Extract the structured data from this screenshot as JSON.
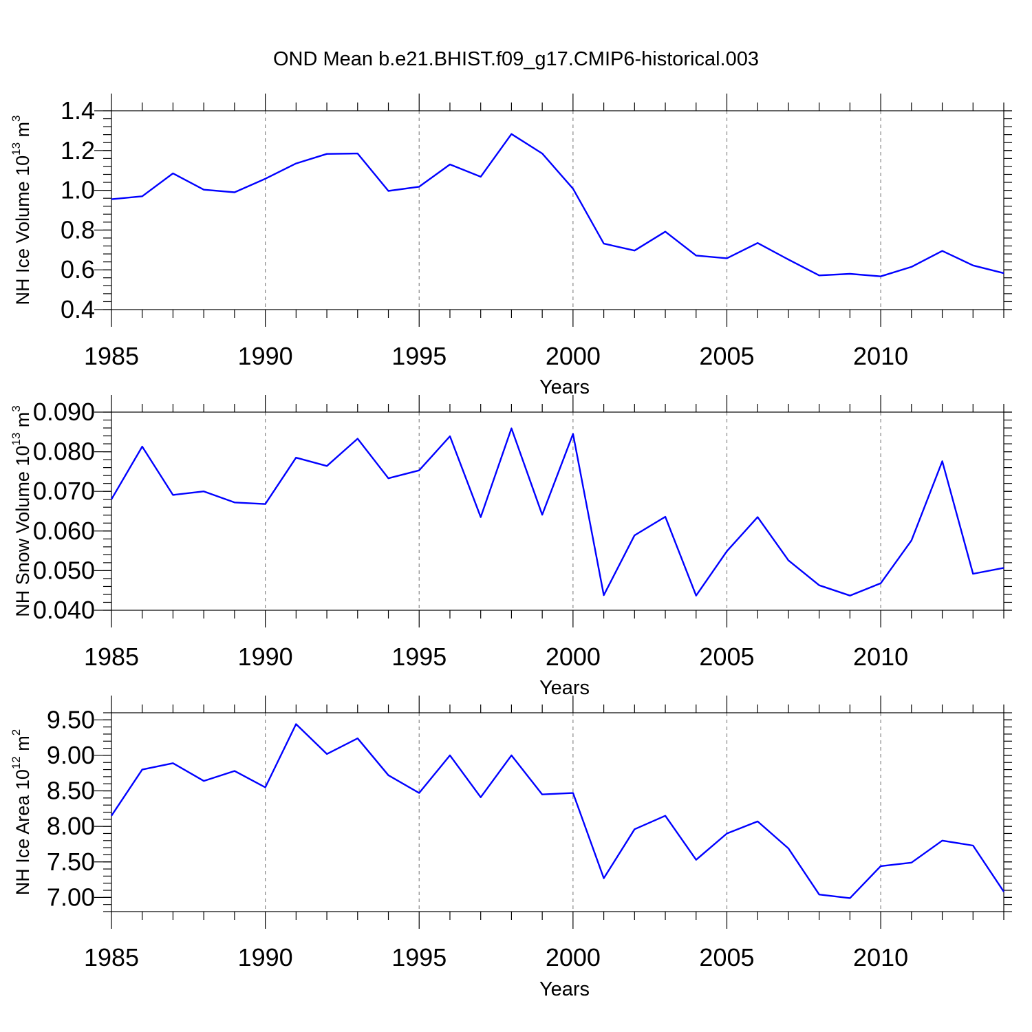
{
  "title": "OND Mean b.e21.BHIST.f09_g17.CMIP6-historical.003",
  "colors": {
    "line": "#0000ff",
    "frame": "#000000",
    "grid": "#888888"
  },
  "chart_data": [
    {
      "type": "line",
      "xlabel": "Years",
      "ylabel_main": "NH Ice Volume 10",
      "ylabel_exp": "13",
      "ylabel_unit": " m",
      "ylabel_unit_exp": "3",
      "xlim": [
        1985,
        2014
      ],
      "ylim": [
        0.4,
        1.4
      ],
      "yticks": [
        0.4,
        0.6,
        0.8,
        1.0,
        1.2,
        1.4
      ],
      "ytick_labels": [
        "0.4",
        "0.6",
        "0.8",
        "1.0",
        "1.2",
        "1.4"
      ],
      "xticks": [
        1985,
        1990,
        1995,
        2000,
        2005,
        2010
      ],
      "xtick_labels": [
        "1985",
        "1990",
        "1995",
        "2000",
        "2005",
        "2010"
      ],
      "grid": "vertical dashed at major x ticks",
      "x": [
        1985,
        1986,
        1987,
        1988,
        1989,
        1990,
        1991,
        1992,
        1993,
        1994,
        1995,
        1996,
        1997,
        1998,
        1999,
        2000,
        2001,
        2002,
        2003,
        2004,
        2005,
        2006,
        2007,
        2008,
        2009,
        2010,
        2011,
        2012,
        2013,
        2014
      ],
      "values": [
        0.955,
        0.97,
        1.085,
        1.003,
        0.99,
        1.058,
        1.135,
        1.183,
        1.185,
        0.997,
        1.018,
        1.13,
        1.068,
        1.283,
        1.185,
        1.008,
        0.732,
        0.697,
        0.792,
        0.672,
        0.658,
        0.735,
        0.652,
        0.572,
        0.58,
        0.567,
        0.615,
        0.695,
        0.622,
        0.583
      ]
    },
    {
      "type": "line",
      "xlabel": "Years",
      "ylabel_main": "NH Snow Volume 10",
      "ylabel_exp": "13",
      "ylabel_unit": " m",
      "ylabel_unit_exp": "3",
      "xlim": [
        1985,
        2014
      ],
      "ylim": [
        0.04,
        0.09
      ],
      "yticks": [
        0.04,
        0.05,
        0.06,
        0.07,
        0.08,
        0.09
      ],
      "ytick_labels": [
        "0.040",
        "0.050",
        "0.060",
        "0.070",
        "0.080",
        "0.090"
      ],
      "xticks": [
        1985,
        1990,
        1995,
        2000,
        2005,
        2010
      ],
      "xtick_labels": [
        "1985",
        "1990",
        "1995",
        "2000",
        "2005",
        "2010"
      ],
      "grid": "vertical dashed at major x ticks",
      "x": [
        1985,
        1986,
        1987,
        1988,
        1989,
        1990,
        1991,
        1992,
        1993,
        1994,
        1995,
        1996,
        1997,
        1998,
        1999,
        2000,
        2001,
        2002,
        2003,
        2004,
        2005,
        2006,
        2007,
        2008,
        2009,
        2010,
        2011,
        2012,
        2013,
        2014
      ],
      "values": [
        0.068,
        0.0813,
        0.0691,
        0.07,
        0.0672,
        0.0668,
        0.0785,
        0.0764,
        0.0833,
        0.0733,
        0.0753,
        0.0839,
        0.0635,
        0.0859,
        0.0641,
        0.0845,
        0.0438,
        0.0589,
        0.0636,
        0.0437,
        0.0549,
        0.0635,
        0.0526,
        0.0463,
        0.0437,
        0.0468,
        0.0576,
        0.0776,
        0.0492,
        0.0507
      ]
    },
    {
      "type": "line",
      "xlabel": "Years",
      "ylabel_main": "NH Ice Area 10",
      "ylabel_exp": "12",
      "ylabel_unit": " m",
      "ylabel_unit_exp": "2",
      "xlim": [
        1985,
        2014
      ],
      "ylim": [
        6.8,
        9.6
      ],
      "yticks": [
        7.0,
        7.5,
        8.0,
        8.5,
        9.0,
        9.5
      ],
      "ytick_labels": [
        "7.00",
        "7.50",
        "8.00",
        "8.50",
        "9.00",
        "9.50"
      ],
      "xticks": [
        1985,
        1990,
        1995,
        2000,
        2005,
        2010
      ],
      "xtick_labels": [
        "1985",
        "1990",
        "1995",
        "2000",
        "2005",
        "2010"
      ],
      "grid": "vertical dashed at major x ticks",
      "x": [
        1985,
        1986,
        1987,
        1988,
        1989,
        1990,
        1991,
        1992,
        1993,
        1994,
        1995,
        1996,
        1997,
        1998,
        1999,
        2000,
        2001,
        2002,
        2003,
        2004,
        2005,
        2006,
        2007,
        2008,
        2009,
        2010,
        2011,
        2012,
        2013,
        2014
      ],
      "values": [
        8.15,
        8.8,
        8.89,
        8.64,
        8.78,
        8.55,
        9.44,
        9.02,
        9.24,
        8.72,
        8.47,
        9.0,
        8.41,
        9.0,
        8.45,
        8.47,
        7.27,
        7.96,
        8.15,
        7.53,
        7.9,
        8.07,
        7.69,
        7.04,
        6.99,
        7.44,
        7.49,
        7.8,
        7.73,
        7.08
      ]
    }
  ]
}
